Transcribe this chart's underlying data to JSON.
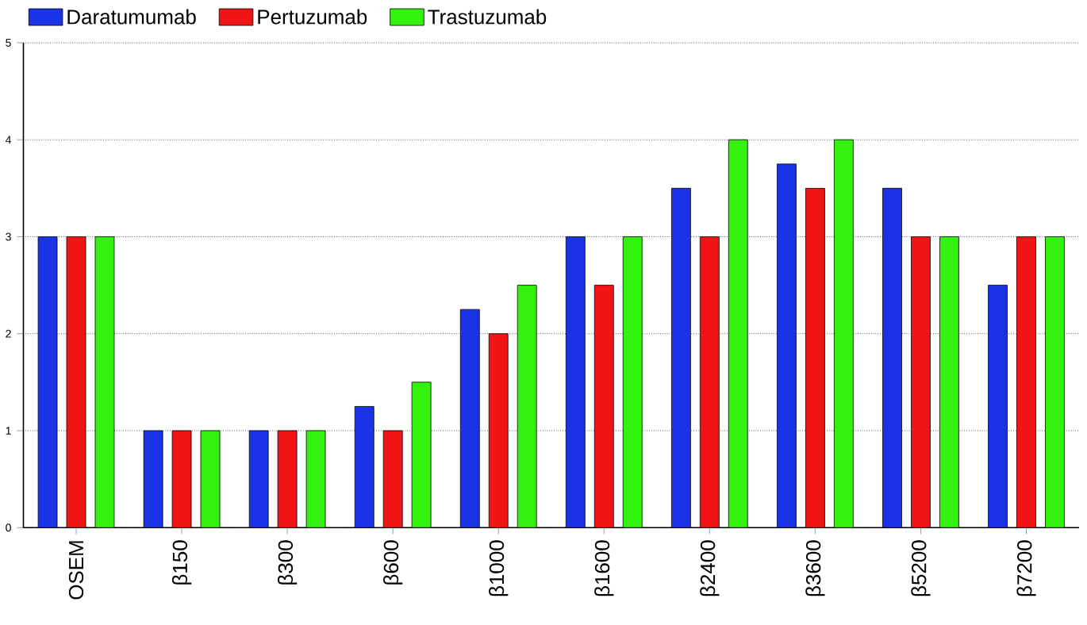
{
  "chart_data": {
    "type": "bar",
    "categories": [
      "OSEM",
      "β150",
      "β300",
      "β600",
      "β1000",
      "β1600",
      "β2400",
      "β3600",
      "β5200",
      "β7200"
    ],
    "series": [
      {
        "name": "Daratumumab",
        "color": "#1a33e6",
        "values": [
          3,
          1,
          1,
          1.25,
          2.25,
          3,
          3.5,
          3.75,
          3.5,
          2.5
        ]
      },
      {
        "name": "Pertuzumab",
        "color": "#f01414",
        "values": [
          3,
          1,
          1,
          1,
          2,
          2.5,
          3,
          3.5,
          3,
          3
        ]
      },
      {
        "name": "Trastuzumab",
        "color": "#33f20d",
        "values": [
          3,
          1,
          1,
          1.5,
          2.5,
          3,
          4,
          4,
          3,
          3
        ]
      }
    ],
    "ylim": [
      0,
      5
    ],
    "yticks": [
      0,
      1,
      2,
      3,
      4,
      5
    ],
    "grid": "y",
    "legend": "top left"
  }
}
